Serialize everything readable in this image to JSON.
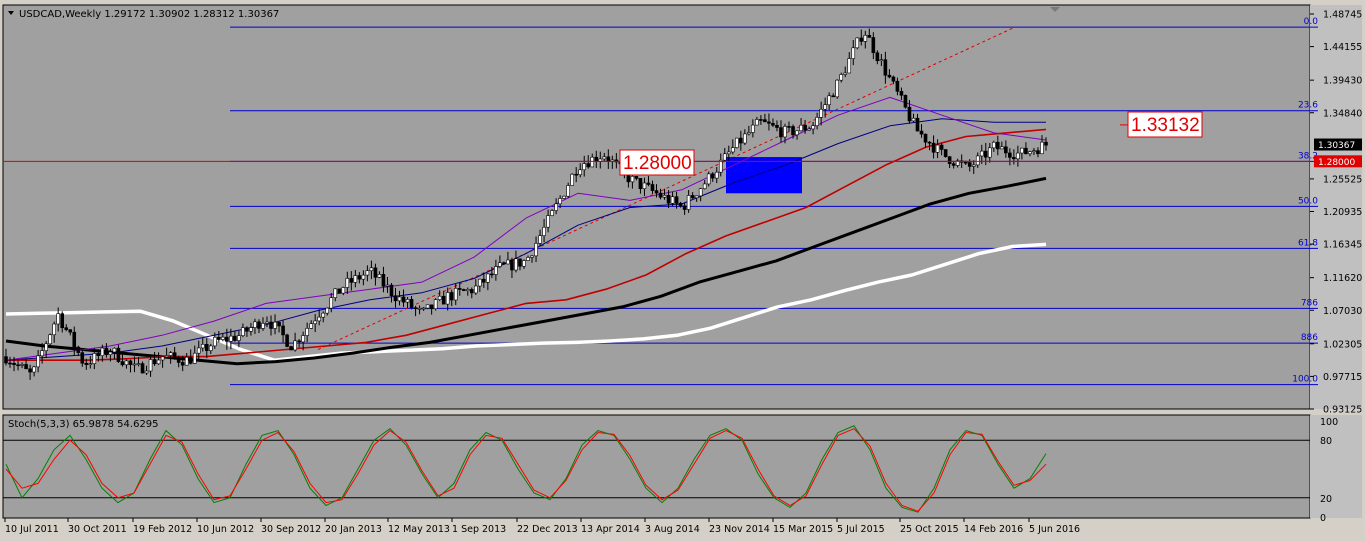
{
  "window": {
    "symbol_line": "USDCAD,Weekly  1.29172 1.30902 1.28312 1.30367"
  },
  "chart_data": [
    {
      "type": "candlestick",
      "title": "USDCAD,Weekly  1.29172 1.30902 1.28312 1.30367",
      "ylim": [
        0.93125,
        1.48745
      ],
      "y_ticks": [
        "1.48745",
        "1.44155",
        "1.39430",
        "1.34840",
        "1.30367",
        "1.28000",
        "1.25525",
        "1.20935",
        "1.16345",
        "1.11620",
        "1.07030",
        "1.02305",
        "0.97715",
        "0.93125"
      ],
      "x_ticks": [
        "10 Jul 2011",
        "30 Oct 2011",
        "19 Feb 2012",
        "10 Jun 2012",
        "30 Sep 2012",
        "20 Jan 2013",
        "12 May 2013",
        "1 Sep 2013",
        "22 Dec 2013",
        "13 Apr 2014",
        "3 Aug 2014",
        "23 Nov 2014",
        "15 Mar 2015",
        "5 Jul 2015",
        "25 Oct 2015",
        "14 Feb 2016",
        "5 Jun 2016"
      ],
      "last_close": "1.30367",
      "horizontal_line": {
        "value": "1.28000",
        "color": "#e00000"
      },
      "fibonacci_levels": [
        {
          "label": "0.0",
          "value": 1.469
        },
        {
          "label": "23.6",
          "value": 1.3513
        },
        {
          "label": "38.2",
          "value": 1.28
        },
        {
          "label": "50.0",
          "value": 1.2165
        },
        {
          "label": "61.8",
          "value": 1.1575
        },
        {
          "label": "786",
          "value": 1.073
        },
        {
          "label": "886",
          "value": 1.024
        },
        {
          "label": "100.0",
          "value": 0.9655
        }
      ],
      "annotations": [
        {
          "text": "1.28000",
          "color": "#e00000"
        },
        {
          "text": "1.33132",
          "color": "#e00000"
        }
      ],
      "highlight_zone": {
        "color": "#0000ff",
        "y_range": [
          1.235,
          1.286
        ]
      },
      "trendline": {
        "from": 1.015,
        "to": 1.469,
        "color": "#e00000",
        "style": "dashed"
      },
      "price_anchors": [
        1.005,
        0.978,
        1.065,
        0.995,
        1.015,
        0.986,
        1.005,
        1.0,
        1.025,
        1.035,
        1.06,
        1.02,
        1.065,
        1.105,
        1.125,
        1.09,
        1.065,
        1.09,
        1.1,
        1.13,
        1.14,
        1.205,
        1.275,
        1.29,
        1.255,
        1.235,
        1.215,
        1.255,
        1.3,
        1.335,
        1.32,
        1.33,
        1.39,
        1.465,
        1.395,
        1.325,
        1.29,
        1.27,
        1.3,
        1.29,
        1.3037
      ],
      "moving_averages": [
        {
          "name": "ema200",
          "color": "#ffffff",
          "values": [
            1.065,
            1.066,
            1.067,
            1.068,
            1.069,
            1.055,
            1.035,
            1.015,
            1.0,
            1.005,
            1.01,
            1.012,
            1.014,
            1.016,
            1.02,
            1.022,
            1.024,
            1.025,
            1.027,
            1.03,
            1.035,
            1.045,
            1.06,
            1.075,
            1.085,
            1.098,
            1.11,
            1.12,
            1.135,
            1.15,
            1.16,
            1.163
          ]
        },
        {
          "name": "ema100",
          "color": "#000000",
          "values": [
            1.027,
            1.02,
            1.015,
            1.01,
            1.005,
            1.0,
            0.995,
            0.998,
            1.003,
            1.01,
            1.018,
            1.025,
            1.035,
            1.045,
            1.055,
            1.065,
            1.075,
            1.09,
            1.11,
            1.125,
            1.14,
            1.16,
            1.18,
            1.2,
            1.22,
            1.235,
            1.245,
            1.256
          ]
        },
        {
          "name": "ema50",
          "color": "#c00000",
          "values": [
            1.0,
            1.0,
            1.0,
            1.002,
            1.005,
            1.005,
            1.01,
            1.015,
            1.02,
            1.025,
            1.035,
            1.05,
            1.065,
            1.08,
            1.085,
            1.1,
            1.12,
            1.15,
            1.175,
            1.195,
            1.215,
            1.245,
            1.275,
            1.3,
            1.315,
            1.32,
            1.325
          ]
        },
        {
          "name": "ema34",
          "color": "#000080",
          "values": [
            1.0,
            1.005,
            1.01,
            1.02,
            1.035,
            1.05,
            1.07,
            1.085,
            1.095,
            1.115,
            1.15,
            1.19,
            1.215,
            1.22,
            1.25,
            1.275,
            1.305,
            1.33,
            1.34,
            1.335,
            1.335
          ]
        },
        {
          "name": "ema21",
          "color": "#8000c0",
          "values": [
            1.0,
            1.01,
            1.02,
            1.035,
            1.055,
            1.08,
            1.09,
            1.1,
            1.11,
            1.145,
            1.2,
            1.235,
            1.225,
            1.24,
            1.275,
            1.31,
            1.345,
            1.37,
            1.345,
            1.32,
            1.31
          ]
        }
      ]
    },
    {
      "type": "line",
      "title": "Stoch(5,3,3) 65.9878 54.6295",
      "ylim": [
        0,
        100
      ],
      "y_ticks": [
        "100",
        "80",
        "20",
        "0"
      ],
      "levels": [
        80,
        20
      ],
      "series": [
        {
          "name": "main",
          "color": "#008000",
          "values": [
            55,
            20,
            40,
            70,
            85,
            60,
            30,
            15,
            25,
            60,
            90,
            75,
            40,
            15,
            20,
            55,
            85,
            90,
            65,
            30,
            12,
            20,
            50,
            80,
            92,
            75,
            45,
            20,
            35,
            70,
            88,
            80,
            50,
            25,
            18,
            40,
            75,
            90,
            85,
            60,
            30,
            15,
            30,
            60,
            85,
            92,
            80,
            45,
            20,
            10,
            25,
            60,
            88,
            95,
            70,
            30,
            10,
            5,
            30,
            70,
            90,
            85,
            55,
            30,
            40,
            66
          ]
        },
        {
          "name": "signal",
          "color": "#ff0000",
          "values": [
            50,
            30,
            35,
            60,
            80,
            65,
            35,
            20,
            25,
            55,
            85,
            78,
            45,
            18,
            22,
            50,
            80,
            88,
            68,
            35,
            15,
            18,
            45,
            75,
            90,
            78,
            48,
            22,
            30,
            65,
            85,
            82,
            55,
            28,
            20,
            38,
            70,
            88,
            86,
            64,
            33,
            18,
            28,
            55,
            82,
            90,
            82,
            50,
            22,
            12,
            22,
            55,
            85,
            92,
            74,
            35,
            12,
            6,
            25,
            65,
            88,
            86,
            58,
            33,
            38,
            55
          ]
        }
      ]
    }
  ]
}
